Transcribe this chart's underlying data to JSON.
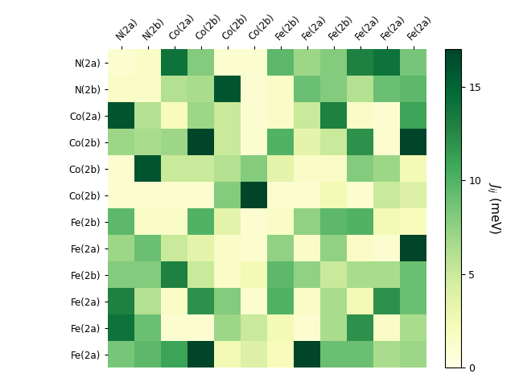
{
  "row_labels": [
    "N(2a)",
    "N(2b)",
    "Co(2a)",
    "Co(2b)",
    "Co(2b)",
    "Co(2b)",
    "Fe(2b)",
    "Fe(2a)",
    "Fe(2b)",
    "Fe(2a)",
    "Fe(2a)",
    "Fe(2a)"
  ],
  "col_labels": [
    "N(2a)",
    "N(2b)",
    "Co(2a)",
    "Co(2b)",
    "Co(2b)",
    "Co(2b)",
    "Fe(2b)",
    "Fe(2a)",
    "Fe(2b)",
    "Fe(2a)",
    "Fe(2a)",
    "Fe(2a)"
  ],
  "matrix": [
    [
      1.0,
      1.5,
      14.0,
      8.0,
      1.0,
      1.0,
      9.5,
      7.0,
      8.0,
      13.0,
      14.0,
      8.5
    ],
    [
      1.5,
      1.5,
      6.0,
      6.5,
      16.0,
      1.0,
      1.5,
      9.0,
      8.0,
      6.0,
      9.0,
      9.5
    ],
    [
      16.0,
      6.0,
      2.0,
      7.0,
      5.0,
      1.0,
      1.5,
      5.0,
      13.0,
      1.5,
      1.0,
      11.0
    ],
    [
      7.0,
      6.5,
      7.0,
      17.0,
      5.0,
      1.0,
      10.0,
      3.5,
      5.0,
      12.0,
      1.0,
      17.0
    ],
    [
      1.0,
      16.0,
      5.0,
      5.0,
      6.0,
      8.0,
      3.5,
      1.5,
      1.5,
      8.0,
      7.0,
      2.5
    ],
    [
      1.0,
      1.0,
      1.0,
      1.0,
      8.0,
      17.0,
      1.0,
      1.0,
      2.5,
      1.0,
      5.0,
      4.0
    ],
    [
      9.5,
      1.5,
      1.5,
      10.0,
      3.5,
      1.0,
      1.5,
      7.5,
      9.5,
      10.0,
      2.5,
      2.0
    ],
    [
      7.0,
      9.0,
      5.0,
      3.5,
      1.5,
      1.0,
      7.5,
      1.5,
      7.5,
      1.5,
      1.0,
      17.0
    ],
    [
      8.0,
      8.0,
      13.0,
      5.0,
      1.5,
      2.5,
      9.5,
      7.5,
      5.0,
      6.5,
      6.5,
      9.0
    ],
    [
      13.0,
      6.0,
      1.5,
      12.0,
      8.0,
      1.0,
      10.0,
      1.5,
      6.5,
      2.5,
      12.0,
      9.0
    ],
    [
      14.0,
      9.0,
      1.0,
      1.0,
      7.0,
      5.0,
      2.5,
      1.0,
      6.5,
      12.0,
      1.5,
      6.5
    ],
    [
      8.5,
      9.5,
      11.0,
      17.0,
      2.5,
      4.0,
      2.0,
      17.0,
      9.0,
      9.0,
      6.5,
      7.0
    ]
  ],
  "vmin": 0,
  "vmax": 17,
  "colorbar_label": "$J_{ij}$ (meV)",
  "colorbar_ticks": [
    0,
    5,
    10,
    15
  ],
  "cmap": "YlGn",
  "figsize": [
    6.4,
    4.8
  ],
  "dpi": 100
}
